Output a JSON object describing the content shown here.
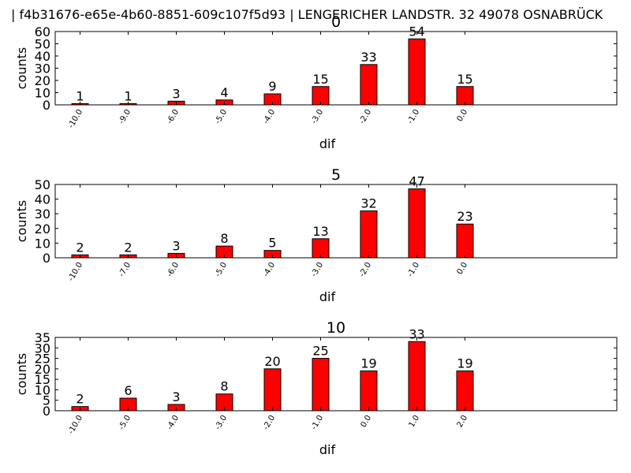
{
  "figure": {
    "suptitle": "| f4b31676-e65e-4b60-8851-609c107f5d93 |        LENGERICHER LANDSTR. 32  49078 OSNABRÜCK"
  },
  "colors": {
    "bar_fill": "#ff0000",
    "bar_edge": "#000000",
    "axes": "#000000",
    "background": "#ffffff"
  },
  "chart_data": [
    {
      "type": "bar",
      "title": "0",
      "xlabel": "dif",
      "ylabel": "counts",
      "ylim": [
        0,
        60
      ],
      "yticks": [
        0,
        10,
        20,
        30,
        40,
        50,
        60
      ],
      "categories": [
        "-10.0",
        "-9.0",
        "-6.0",
        "-5.0",
        "-4.0",
        "-3.0",
        "-2.0",
        "-1.0",
        "0.0"
      ],
      "values": [
        1,
        1,
        3,
        4,
        9,
        15,
        33,
        54,
        15
      ],
      "grid": false
    },
    {
      "type": "bar",
      "title": "5",
      "xlabel": "dif",
      "ylabel": "counts",
      "ylim": [
        0,
        50
      ],
      "yticks": [
        0,
        10,
        20,
        30,
        40,
        50
      ],
      "categories": [
        "-10.0",
        "-7.0",
        "-6.0",
        "-5.0",
        "-4.0",
        "-3.0",
        "-2.0",
        "-1.0",
        "0.0"
      ],
      "values": [
        2,
        2,
        3,
        8,
        5,
        13,
        32,
        47,
        23
      ],
      "grid": false
    },
    {
      "type": "bar",
      "title": "10",
      "xlabel": "dif",
      "ylabel": "counts",
      "ylim": [
        0,
        35
      ],
      "yticks": [
        0,
        5,
        10,
        15,
        20,
        25,
        30,
        35
      ],
      "categories": [
        "-10.0",
        "-5.0",
        "-4.0",
        "-3.0",
        "-2.0",
        "-1.0",
        "0.0",
        "1.0",
        "2.0"
      ],
      "values": [
        2,
        6,
        3,
        8,
        20,
        25,
        19,
        33,
        19
      ],
      "grid": false
    }
  ]
}
